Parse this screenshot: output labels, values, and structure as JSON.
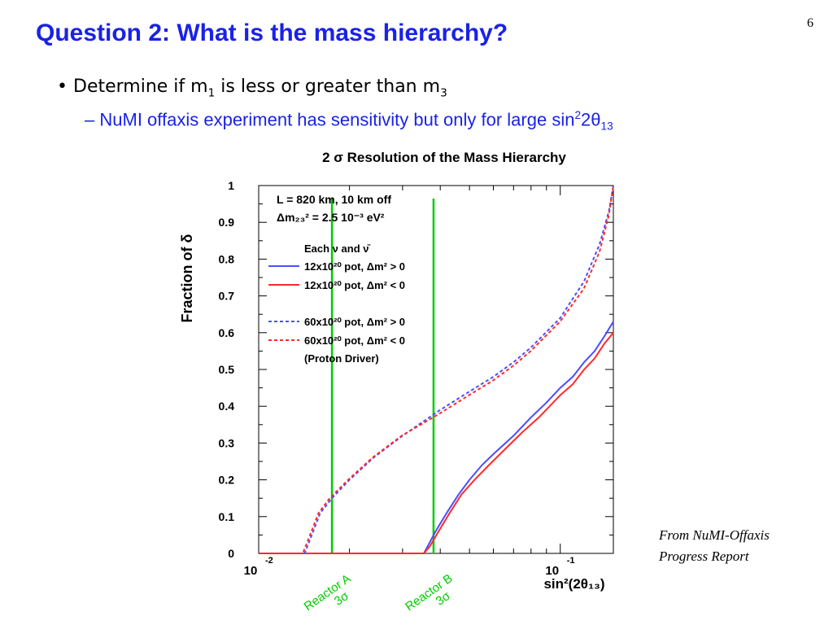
{
  "slide": {
    "page_number": "6",
    "title": "Question 2:  What is the mass hierarchy?",
    "bullet1": {
      "prefix": "Determine if m",
      "sub1": "1",
      "mid": " is less or greater than m",
      "sub2": "3"
    },
    "bullet2": {
      "dash": "–",
      "prefix": "NuMI offaxis experiment has sensitivity but only for large sin",
      "sup": "2",
      "mid": "2θ",
      "sub": "13"
    },
    "source_line1": "From NuMI-Offaxis",
    "source_line2": "Progress Report"
  },
  "chart_data": {
    "type": "line",
    "title": "2 σ Resolution of the Mass Hierarchy",
    "xlabel": "sin²(2θ₁₃)",
    "ylabel": "Fraction of δ",
    "xscale": "log",
    "xlim": [
      0.01,
      0.15
    ],
    "ylim": [
      0,
      1
    ],
    "x_ticks": [
      0.01,
      0.1
    ],
    "x_tick_labels": [
      {
        "base": "10",
        "exp": "-2"
      },
      {
        "base": "10",
        "exp": "-1"
      }
    ],
    "y_ticks": [
      "0",
      "0.1",
      "0.2",
      "0.3",
      "0.4",
      "0.5",
      "0.6",
      "0.7",
      "0.8",
      "0.9",
      "1"
    ],
    "legend_position": "top-left",
    "annotations": [
      "L = 820 km, 10 km off",
      "Δm₂₃² = 2.5 10⁻³ eV²",
      "Each ν and ν̄",
      "(Proton Driver)"
    ],
    "series": [
      {
        "name": "12x10²⁰ pot, Δm² > 0",
        "color": "#4d4dff",
        "style": "solid",
        "x": [
          0.01,
          0.0353,
          0.0386,
          0.042,
          0.046,
          0.05,
          0.055,
          0.06,
          0.07,
          0.08,
          0.09,
          0.1,
          0.11,
          0.12,
          0.13,
          0.14,
          0.15
        ],
        "y": [
          0,
          0,
          0.06,
          0.11,
          0.16,
          0.2,
          0.24,
          0.27,
          0.32,
          0.37,
          0.41,
          0.45,
          0.48,
          0.52,
          0.55,
          0.59,
          0.63
        ]
      },
      {
        "name": "12x10²⁰ pot, Δm² < 0",
        "color": "#ff2a2a",
        "style": "solid",
        "x": [
          0.01,
          0.0353,
          0.037,
          0.0395,
          0.043,
          0.047,
          0.052,
          0.058,
          0.065,
          0.075,
          0.085,
          0.1,
          0.11,
          0.12,
          0.13,
          0.14,
          0.15
        ],
        "y": [
          0,
          0,
          0.02,
          0.06,
          0.11,
          0.16,
          0.2,
          0.24,
          0.28,
          0.33,
          0.37,
          0.43,
          0.46,
          0.5,
          0.53,
          0.57,
          0.6
        ]
      },
      {
        "name": "60x10²⁰ pot, Δm² > 0",
        "color": "#4d4dff",
        "style": "dotted",
        "x": [
          0.01,
          0.0142,
          0.015,
          0.016,
          0.0175,
          0.02,
          0.024,
          0.03,
          0.04,
          0.05,
          0.06,
          0.07,
          0.08,
          0.1,
          0.12,
          0.135,
          0.145,
          0.15
        ],
        "y": [
          0,
          0,
          0.05,
          0.11,
          0.15,
          0.2,
          0.26,
          0.32,
          0.39,
          0.44,
          0.48,
          0.52,
          0.56,
          0.64,
          0.74,
          0.84,
          0.93,
          1.0
        ]
      },
      {
        "name": "60x10²⁰ pot, Δm² < 0",
        "color": "#ff2a2a",
        "style": "dotted",
        "x": [
          0.01,
          0.014,
          0.0148,
          0.0158,
          0.0172,
          0.0198,
          0.0238,
          0.0298,
          0.0398,
          0.0498,
          0.0598,
          0.0698,
          0.0798,
          0.0998,
          0.1198,
          0.135,
          0.145,
          0.15
        ],
        "y": [
          0,
          0,
          0.05,
          0.11,
          0.15,
          0.2,
          0.26,
          0.32,
          0.38,
          0.43,
          0.47,
          0.51,
          0.55,
          0.63,
          0.72,
          0.82,
          0.92,
          1.0
        ]
      }
    ],
    "reference_lines": [
      {
        "x": 0.0175,
        "color": "#00cc00",
        "label1": "Reactor A",
        "label2": "3σ"
      },
      {
        "x": 0.038,
        "color": "#00cc00",
        "label1": "Reactor B",
        "label2": "3σ"
      }
    ]
  }
}
